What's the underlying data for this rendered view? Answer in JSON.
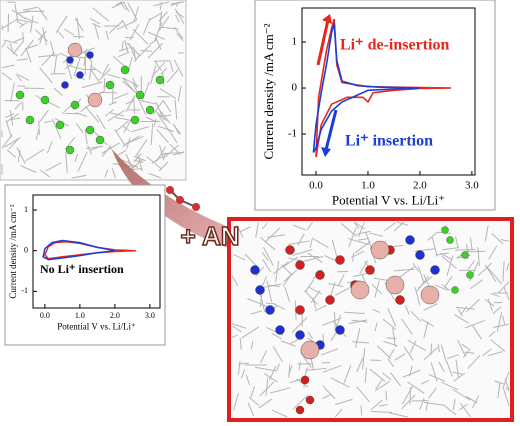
{
  "chart_data": [
    {
      "type": "line",
      "xlabel": "Potential V vs. Li/Li⁺",
      "ylabel": "Current density /mA cm⁻²",
      "xlim": [
        -0.27,
        3.06
      ],
      "ylim": [
        -1.89,
        1.74
      ],
      "xticks": [
        {
          "value": 0,
          "label": "0.0"
        },
        {
          "value": 1,
          "label": "1.0"
        },
        {
          "value": 2,
          "label": "2.0"
        },
        {
          "value": 3,
          "label": "3.0"
        }
      ],
      "yticks": [
        -1,
        0,
        1
      ],
      "annotations": [
        {
          "text": "Li⁺ de-insertion",
          "color": "#e8261c"
        },
        {
          "text": "Li⁺ insertion",
          "color": "#1a3fd6"
        }
      ],
      "series": [
        {
          "color": "#e8261c",
          "x": [
            2.6,
            2.0,
            1.5,
            1.1,
            1.0,
            0.9,
            0.6,
            0.3,
            0.1,
            0.0,
            0.05,
            0.2,
            0.3,
            0.35,
            0.4,
            0.5,
            1.0,
            2.0,
            2.6
          ],
          "values": [
            0,
            -0.01,
            -0.05,
            -0.1,
            -0.3,
            -0.2,
            -0.2,
            -0.35,
            -0.8,
            -1.5,
            -0.2,
            0.8,
            1.3,
            1.5,
            0.5,
            0.12,
            0.03,
            0.01,
            0
          ]
        },
        {
          "color": "#1a3fd6",
          "x": [
            2.0,
            1.5,
            1.0,
            0.8,
            0.5,
            0.3,
            0.1,
            0.0,
            -0.05,
            0.0,
            0.1,
            0.2,
            0.3,
            0.35,
            0.4,
            0.5,
            0.8,
            1.2,
            1.6,
            2.0
          ],
          "values": [
            0,
            -0.02,
            -0.05,
            -0.15,
            -0.3,
            -0.5,
            -0.9,
            -1.3,
            -1.4,
            -0.8,
            -0.1,
            0.5,
            1.2,
            1.4,
            0.6,
            0.15,
            0.05,
            0.02,
            0.01,
            0
          ]
        }
      ]
    },
    {
      "type": "line",
      "xlabel": "Potential V vs. Li/Li⁺",
      "ylabel": "Current density /mA cm⁻²",
      "xlim": [
        -0.34,
        3.29
      ],
      "ylim": [
        -1.41,
        1.37
      ],
      "xticks": [
        {
          "value": 0,
          "label": "0.0"
        },
        {
          "value": 1,
          "label": "1.0"
        },
        {
          "value": 2,
          "label": "2.0"
        },
        {
          "value": 3,
          "label": "3.0"
        }
      ],
      "yticks": [
        -1,
        0,
        1
      ],
      "annotations": [
        {
          "text": "No Li⁺ insertion",
          "color": "#000000"
        }
      ],
      "series": [
        {
          "color": "#e8261c",
          "x": [
            2.6,
            2.0,
            1.5,
            1.0,
            0.5,
            0.1,
            0.0,
            0.1,
            0.3,
            0.6,
            1.0,
            1.5,
            2.0,
            2.6
          ],
          "values": [
            0,
            -0.02,
            -0.05,
            -0.1,
            -0.15,
            -0.2,
            -0.1,
            0.1,
            0.2,
            0.22,
            0.18,
            0.08,
            0.02,
            0
          ]
        },
        {
          "color": "#1a3fd6",
          "x": [
            2.0,
            1.5,
            1.0,
            0.5,
            0.1,
            -0.05,
            0.0,
            0.2,
            0.5,
            1.0,
            1.5,
            2.0
          ],
          "values": [
            0,
            -0.05,
            -0.12,
            -0.18,
            -0.22,
            -0.15,
            0.05,
            0.2,
            0.25,
            0.2,
            0.08,
            0
          ]
        }
      ]
    }
  ],
  "label": "+ AN"
}
